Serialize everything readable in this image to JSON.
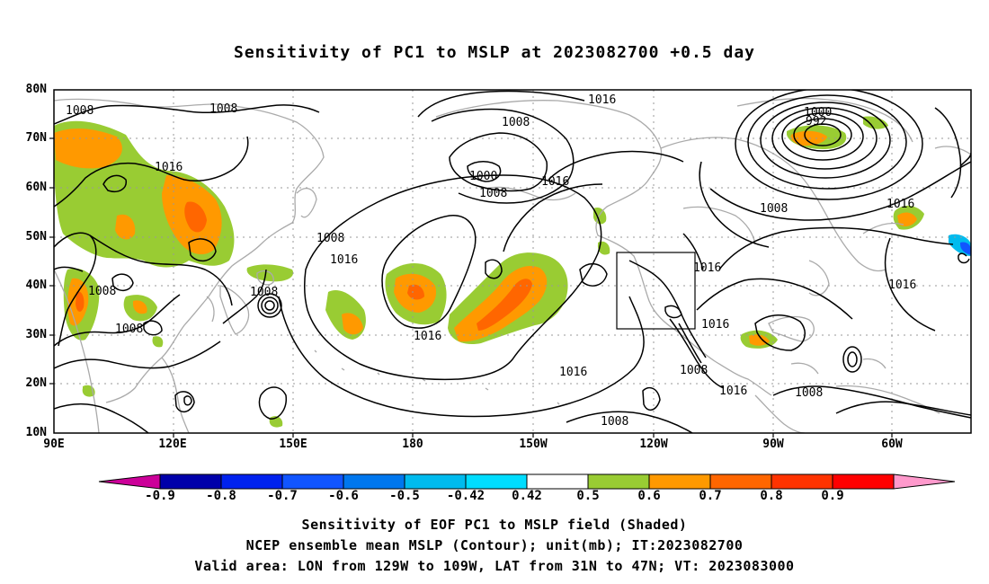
{
  "title": "Sensitivity of PC1 to MSLP at 2023082700 +0.5 day",
  "lat_labels": [
    "80N",
    "70N",
    "60N",
    "50N",
    "40N",
    "30N",
    "20N",
    "10N"
  ],
  "lon_labels": [
    "90E",
    "120E",
    "150E",
    "180",
    "150W",
    "120W",
    "90W",
    "60W"
  ],
  "contour_labels": [
    "1008",
    "1008",
    "1016",
    "1008",
    "1008",
    "1008",
    "1008",
    "1008",
    "1000",
    "1008",
    "1016",
    "1016",
    "1016",
    "1016",
    "1016",
    "1008",
    "1000",
    "992",
    "1008",
    "1016",
    "1016",
    "1016",
    "1016",
    "1008",
    "1016",
    "1008",
    "1008"
  ],
  "colorbar": {
    "labels": [
      "-0.9",
      "-0.8",
      "-0.7",
      "-0.6",
      "-0.5",
      "-0.42",
      "0.42",
      "0.5",
      "0.6",
      "0.7",
      "0.8",
      "0.9"
    ],
    "colors": [
      "#cc0099",
      "#0000aa",
      "#0022ee",
      "#1155ff",
      "#0077ee",
      "#00bbee",
      "#00ddff",
      "#ffffff",
      "#99cc33",
      "#ff9900",
      "#ff6600",
      "#ff3300",
      "#ff0000",
      "#ff99cc"
    ]
  },
  "captions": [
    "Sensitivity of EOF PC1 to MSLP field (Shaded)",
    "NCEP ensemble mean MSLP (Contour); unit(mb); IT:2023082700",
    "Valid area: LON from 129W to 109W, LAT from 31N to 47N; VT: 2023083000"
  ],
  "map": {
    "lon_range": [
      "90E",
      "40W"
    ],
    "lat_range": [
      "10N",
      "80N"
    ],
    "valid_box": {
      "lon": [
        "129W",
        "109W"
      ],
      "lat": [
        "31N",
        "47N"
      ]
    },
    "colors": {
      "green": "#99cc33",
      "orange": "#ff9900",
      "red": "#ff6600",
      "cyan": "#00bbee",
      "blue": "#1155ff",
      "coast": "#aaaaaa",
      "grid": "#999999"
    }
  }
}
